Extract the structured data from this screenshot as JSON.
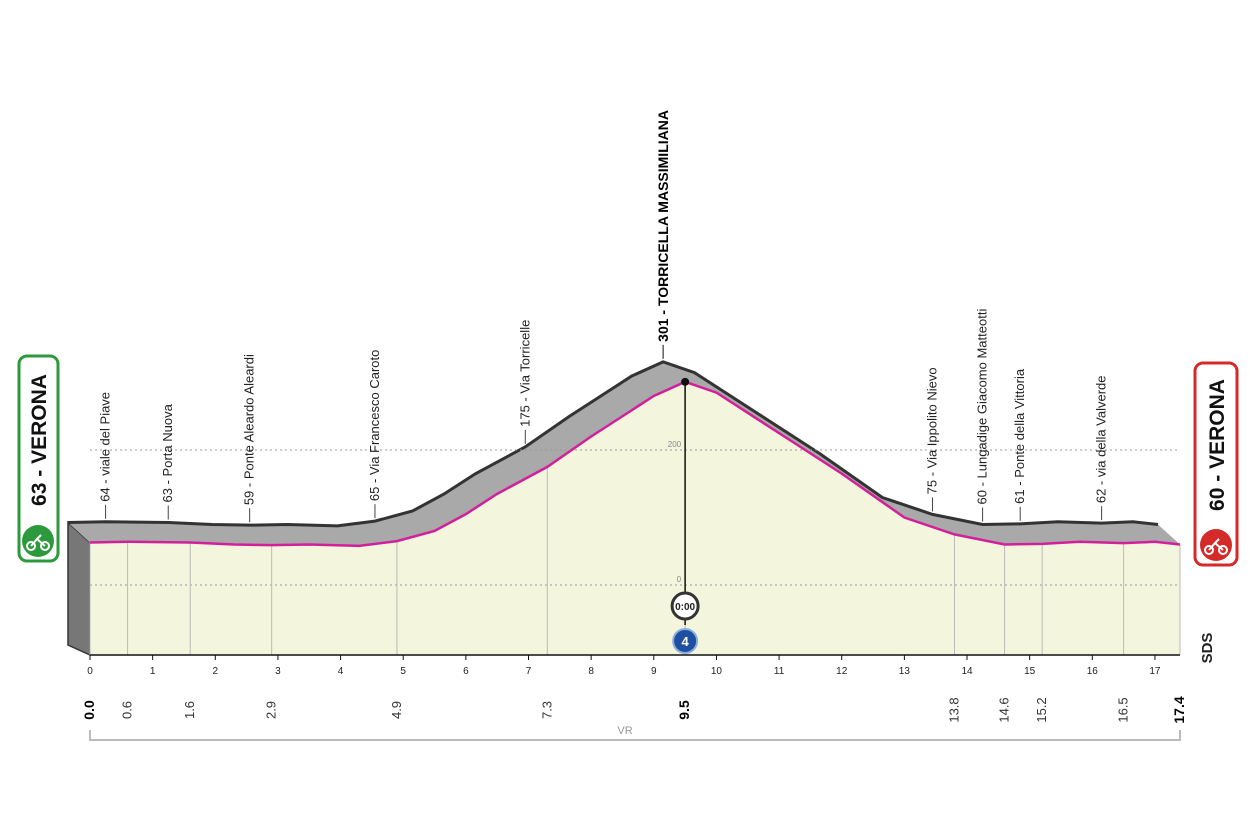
{
  "chart_data": {
    "type": "profile",
    "start": "63 - VERONA",
    "finish": "60 - VERONA",
    "summit": {
      "label": "301 - TORRICELLA MASSIMILIANA",
      "km": 9.5
    },
    "km": [
      0,
      0.6,
      1.6,
      2.3,
      2.9,
      3.5,
      4.3,
      4.9,
      5.5,
      6.0,
      6.5,
      7.3,
      8.0,
      8.5,
      9.0,
      9.5,
      10.0,
      11.0,
      12.0,
      13.0,
      13.8,
      14.6,
      15.2,
      15.8,
      16.5,
      17.0,
      17.4
    ],
    "elevation": [
      63,
      64,
      63,
      60,
      59,
      60,
      58,
      65,
      80,
      105,
      135,
      175,
      220,
      250,
      280,
      301,
      285,
      225,
      165,
      100,
      75,
      60,
      61,
      64,
      62,
      64,
      60
    ],
    "xlim": [
      0,
      17.4
    ],
    "xticks": [
      0,
      1,
      2,
      3,
      4,
      5,
      6,
      7,
      8,
      9,
      10,
      11,
      12,
      13,
      14,
      15,
      16,
      17
    ],
    "ylim": [
      0,
      301
    ],
    "yticks": [
      0,
      200
    ],
    "km_markers": [
      {
        "value": 0,
        "label": "0.0"
      },
      0.6,
      1.6,
      2.9,
      4.9,
      7.3,
      9.5,
      13.8,
      14.6,
      15.2,
      16.5,
      17.4
    ],
    "waypoints": [
      {
        "label": "64 - viale del Piave",
        "km": 0.6
      },
      {
        "label": "63 - Porta Nuova",
        "km": 1.6
      },
      {
        "label": "59 - Ponte Aleardo Aleardi",
        "km": 2.9
      },
      {
        "label": "65 - Via Francesco Caroto",
        "km": 4.9
      },
      {
        "label": "175 - Via Torricelle",
        "km": 7.3
      },
      {
        "label": "75 - Via Ippolito Nievo",
        "km": 13.8
      },
      {
        "label": "60 - Lungadige Giacomo Matteotti",
        "km": 14.6
      },
      {
        "label": "61 - Ponte della Vittoria",
        "km": 15.2
      },
      {
        "label": "62 - via della Valverde",
        "km": 16.5
      }
    ],
    "timing": "0:00",
    "category": "4",
    "region": "VR",
    "logo": "SDS",
    "colors": {
      "line": "#d21f9c",
      "face": "#a9a9a9",
      "plane": "#f3f5dc",
      "start": "#2c9a3c",
      "finish": "#d42a2a"
    }
  }
}
